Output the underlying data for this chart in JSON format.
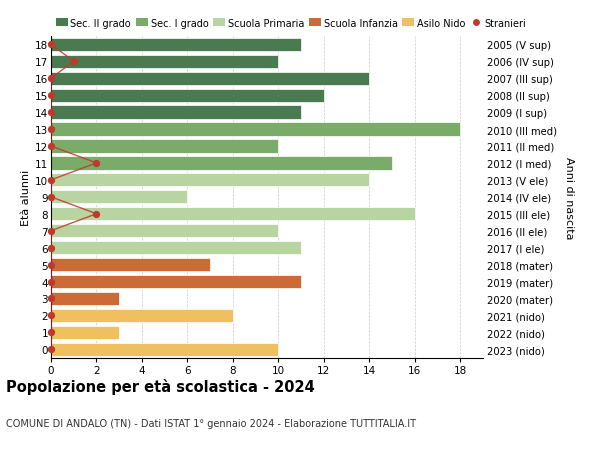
{
  "ages": [
    18,
    17,
    16,
    15,
    14,
    13,
    12,
    11,
    10,
    9,
    8,
    7,
    6,
    5,
    4,
    3,
    2,
    1,
    0
  ],
  "years": [
    "2005 (V sup)",
    "2006 (IV sup)",
    "2007 (III sup)",
    "2008 (II sup)",
    "2009 (I sup)",
    "2010 (III med)",
    "2011 (II med)",
    "2012 (I med)",
    "2013 (V ele)",
    "2014 (IV ele)",
    "2015 (III ele)",
    "2016 (II ele)",
    "2017 (I ele)",
    "2018 (mater)",
    "2019 (mater)",
    "2020 (mater)",
    "2021 (nido)",
    "2022 (nido)",
    "2023 (nido)"
  ],
  "values": [
    11,
    10,
    14,
    12,
    11,
    18,
    10,
    15,
    14,
    6,
    16,
    10,
    11,
    7,
    11,
    3,
    8,
    3,
    10
  ],
  "stranieri": [
    0,
    1,
    0,
    0,
    0,
    0,
    0,
    2,
    0,
    0,
    2,
    0,
    0,
    0,
    0,
    0,
    0,
    0,
    0
  ],
  "bar_colors": [
    "#4a7a50",
    "#4a7a50",
    "#4a7a50",
    "#4a7a50",
    "#4a7a50",
    "#7aab68",
    "#7aab68",
    "#7aab68",
    "#b8d4a0",
    "#b8d4a0",
    "#b8d4a0",
    "#b8d4a0",
    "#b8d4a0",
    "#cc6b35",
    "#cc6b35",
    "#cc6b35",
    "#f0c060",
    "#f0c060",
    "#f0c060"
  ],
  "legend_labels": [
    "Sec. II grado",
    "Sec. I grado",
    "Scuola Primaria",
    "Scuola Infanzia",
    "Asilo Nido",
    "Stranieri"
  ],
  "legend_colors": [
    "#4a7a50",
    "#7aab68",
    "#b8d4a0",
    "#cc6b35",
    "#f0c060",
    "#c0392b"
  ],
  "title": "Popolazione per età scolastica - 2024",
  "subtitle": "COMUNE DI ANDALO (TN) - Dati ISTAT 1° gennaio 2024 - Elaborazione TUTTITALIA.IT",
  "ylabel_left": "Età alunni",
  "ylabel_right": "Anni di nascita",
  "xlim": [
    0,
    19
  ],
  "xticks": [
    0,
    2,
    4,
    6,
    8,
    10,
    12,
    14,
    16,
    18
  ],
  "stranieri_color": "#c0392b",
  "bar_height": 0.78
}
